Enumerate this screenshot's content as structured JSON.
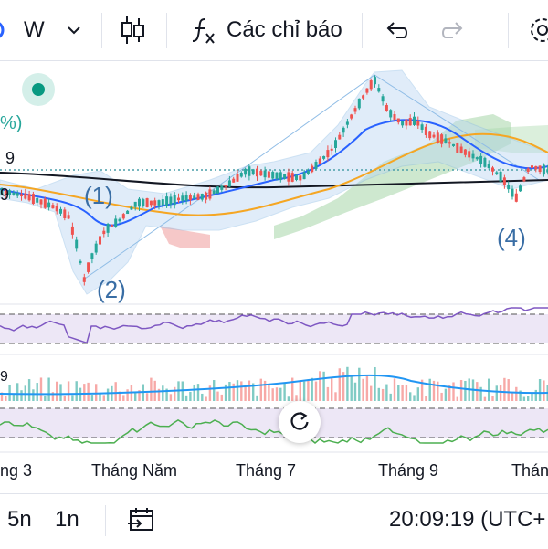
{
  "toolbar": {
    "interval": "W",
    "indicators_label": "Các chỉ báo",
    "icons": [
      "chevron-down-icon",
      "candles-icon",
      "function-icon",
      "undo-icon",
      "redo-icon",
      "settings-icon"
    ]
  },
  "chart": {
    "left_labels": [
      "%)",
      "9",
      "9"
    ],
    "wave_labels": [
      "(1)",
      "(2)",
      "(4)"
    ],
    "x_labels": [
      "ng 3",
      "Tháng Năm",
      "Tháng 7",
      "Tháng 9",
      "Thán"
    ],
    "volume_label": "9",
    "colors": {
      "up": "#26a69a",
      "down": "#ef5350",
      "rsi": "#7e57c2",
      "ma_fast": "#2962ff",
      "ma_slow": "#f5a623",
      "ma_long": "#131722",
      "stoch": "#4caf50",
      "band": "#bbd7f2",
      "cloud_up": "#a5d6a7",
      "cloud_down": "#ef9a9a"
    }
  },
  "bottombar": {
    "tf_5n": "5n",
    "tf_1n": "1n",
    "clock": "20:09:19 (UTC+"
  }
}
